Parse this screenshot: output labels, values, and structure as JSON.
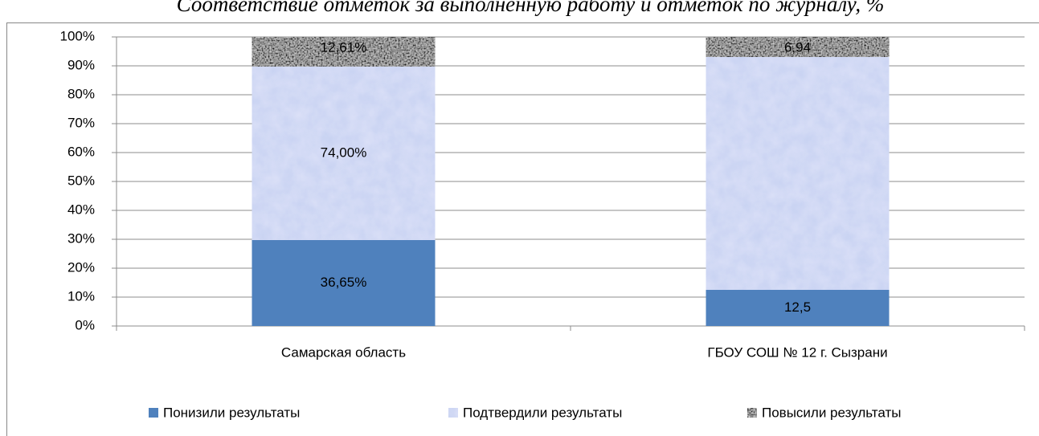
{
  "chart_data": {
    "type": "bar",
    "stacked": "percent",
    "title": "Соответствие отметок за выполненную работу и отметок по журналу, %",
    "categories": [
      "Самарская область",
      "ГБОУ СОШ № 12 г. Сызрани"
    ],
    "series": [
      {
        "name": "Понизили результаты",
        "color": "#4f81bd",
        "values": [
          36.65,
          12.5
        ],
        "value_labels": [
          "36,65%",
          "12,5"
        ]
      },
      {
        "name": "Подтвердили результаты",
        "color": "#c9d3f2",
        "values": [
          74,
          80.56
        ],
        "value_labels": [
          "74,00%",
          null
        ]
      },
      {
        "name": "Повысили результаты",
        "color": "#9a9a9a",
        "values": [
          12.61,
          6.94
        ],
        "value_labels": [
          "12,61%",
          "6,94"
        ]
      }
    ],
    "ylim": [
      0,
      100
    ],
    "yticks": [
      {
        "value": 0,
        "label": "0%"
      },
      {
        "value": 10,
        "label": "10%"
      },
      {
        "value": 20,
        "label": "20%"
      },
      {
        "value": 30,
        "label": "30%"
      },
      {
        "value": 40,
        "label": "40%"
      },
      {
        "value": 50,
        "label": "50%"
      },
      {
        "value": 60,
        "label": "60%"
      },
      {
        "value": 70,
        "label": "70%"
      },
      {
        "value": 80,
        "label": "80%"
      },
      {
        "value": 90,
        "label": "90%"
      },
      {
        "value": 100,
        "label": "100%"
      }
    ],
    "grid": true,
    "legend": "bottom"
  }
}
